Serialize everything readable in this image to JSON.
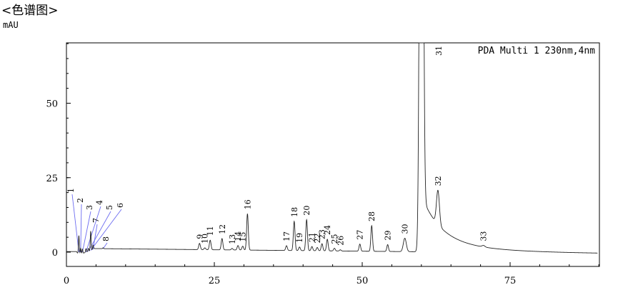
{
  "title": "<色谱图>",
  "chart_data": {
    "type": "line",
    "ylabel": "mAU",
    "xlim": [
      0,
      90
    ],
    "ylim": [
      -5,
      70
    ],
    "x_ticks": [
      0,
      25,
      50,
      75
    ],
    "y_ticks": [
      0,
      25,
      50
    ],
    "legend": "PDA Multi 1 230nm,4nm",
    "legend_position": "top-right",
    "grid": false,
    "line_color": "#222222",
    "leader_color": "#6c6cf0",
    "peaks": [
      {
        "label": "1",
        "rt": 2.1,
        "height": 6.5
      },
      {
        "label": "2",
        "rt": 2.4,
        "height": 2.0
      },
      {
        "label": "3",
        "rt": 2.7,
        "height": 1.5
      },
      {
        "label": "4",
        "rt": 3.3,
        "height": 1.2
      },
      {
        "label": "5",
        "rt": 3.7,
        "height": 1.0
      },
      {
        "label": "6",
        "rt": 4.1,
        "height": 6.5
      },
      {
        "label": "7",
        "rt": 4.5,
        "height": 1.5
      },
      {
        "label": "8",
        "rt": 6.2,
        "height": 0.3
      },
      {
        "label": "9",
        "rt": 22.5,
        "height": 2.1
      },
      {
        "label": "10",
        "rt": 23.4,
        "height": 0.6
      },
      {
        "label": "11",
        "rt": 24.3,
        "height": 3.2
      },
      {
        "label": "12",
        "rt": 26.3,
        "height": 3.8
      },
      {
        "label": "13",
        "rt": 28.0,
        "height": 0.5
      },
      {
        "label": "14",
        "rt": 29.0,
        "height": 1.5
      },
      {
        "label": "15",
        "rt": 29.8,
        "height": 1.3
      },
      {
        "label": "16",
        "rt": 30.6,
        "height": 12.2
      },
      {
        "label": "17",
        "rt": 37.2,
        "height": 1.6
      },
      {
        "label": "18",
        "rt": 38.5,
        "height": 9.8
      },
      {
        "label": "19",
        "rt": 39.4,
        "height": 1.2
      },
      {
        "label": "20",
        "rt": 40.6,
        "height": 10.4
      },
      {
        "label": "21",
        "rt": 41.5,
        "height": 1.4
      },
      {
        "label": "22",
        "rt": 42.4,
        "height": 1.1
      },
      {
        "label": "23",
        "rt": 43.2,
        "height": 2.4
      },
      {
        "label": "24",
        "rt": 44.1,
        "height": 3.9
      },
      {
        "label": "25",
        "rt": 45.3,
        "height": 0.9
      },
      {
        "label": "26",
        "rt": 46.3,
        "height": 0.4
      },
      {
        "label": "27",
        "rt": 49.6,
        "height": 2.4
      },
      {
        "label": "28",
        "rt": 51.6,
        "height": 8.6
      },
      {
        "label": "29",
        "rt": 54.3,
        "height": 2.3
      },
      {
        "label": "30",
        "rt": 57.2,
        "height": 4.5
      },
      {
        "label": "31",
        "rt": 60.0,
        "height": 320
      },
      {
        "label": "32",
        "rt": 62.8,
        "height": 11.5
      },
      {
        "label": "33",
        "rt": 70.5,
        "height": 0.5
      }
    ]
  }
}
